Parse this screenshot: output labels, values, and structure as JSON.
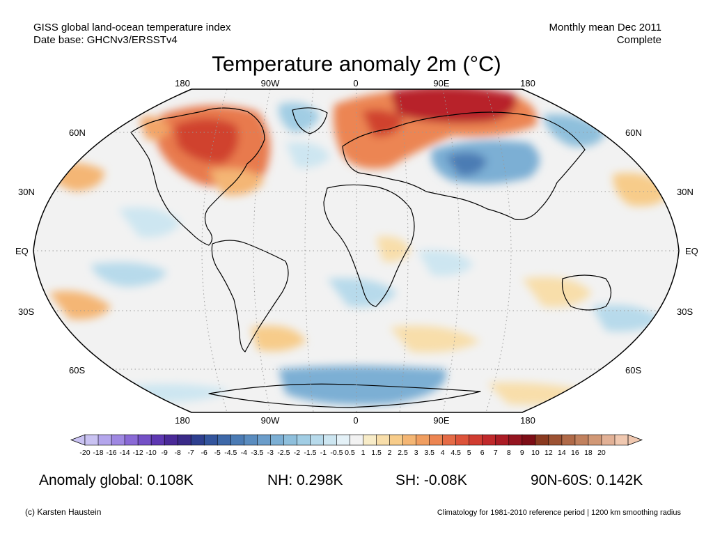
{
  "header": {
    "left_line1": "GISS global land-ocean temperature index",
    "left_line2": "Date base: GHCNv3/ERSSTv4",
    "right_line1": "Monthly mean Dec 2011",
    "right_line2": "Complete"
  },
  "title": "Temperature anomaly 2m (°C)",
  "longitude_labels": [
    "180",
    "90W",
    "0",
    "90E",
    "180"
  ],
  "latitude_labels": [
    "60N",
    "30N",
    "EQ",
    "30S",
    "60S"
  ],
  "colorbar": {
    "tick_labels": [
      "-20",
      "-18",
      "-16",
      "-14",
      "-12",
      "-10",
      "-9",
      "-8",
      "-7",
      "-6",
      "-5",
      "-4.5",
      "-4",
      "-3.5",
      "-3",
      "-2.5",
      "-2",
      "-1.5",
      "-1",
      "-0.5",
      "0.5",
      "1",
      "1.5",
      "2",
      "2.5",
      "3",
      "3.5",
      "4",
      "4.5",
      "5",
      "6",
      "7",
      "8",
      "9",
      "10",
      "12",
      "14",
      "16",
      "18",
      "20"
    ],
    "colors": [
      "#c9c2f2",
      "#b4a6ec",
      "#9f88e2",
      "#8a6ad6",
      "#7450c6",
      "#5e38b2",
      "#4a2a98",
      "#3a2a88",
      "#2e3f8f",
      "#33559d",
      "#3d68a8",
      "#4b7bb4",
      "#5a8cbf",
      "#6b9dca",
      "#7cafd4",
      "#8ebfdc",
      "#a1cde4",
      "#b7daeb",
      "#cde6f1",
      "#e4f1f7",
      "#f2f2f2",
      "#f8ecc8",
      "#f8deaa",
      "#f7cc8a",
      "#f4b674",
      "#f09e60",
      "#ec8552",
      "#e56b46",
      "#dd533a",
      "#d03c31",
      "#c0292b",
      "#ab1c25",
      "#941520",
      "#7d0e16",
      "#8a3a20",
      "#9c5233",
      "#b06a48",
      "#c1815e",
      "#d19876",
      "#e2b196",
      "#f0c8b0"
    ]
  },
  "stats": {
    "global": "Anomaly global: 0.108K",
    "nh": "NH: 0.298K",
    "sh": "SH: -0.08K",
    "band": "90N-60S: 0.142K"
  },
  "credits": {
    "left": "(c) Karsten Haustein",
    "right": "Climatology for 1981-2010 reference period | 1200 km smoothing radius"
  }
}
